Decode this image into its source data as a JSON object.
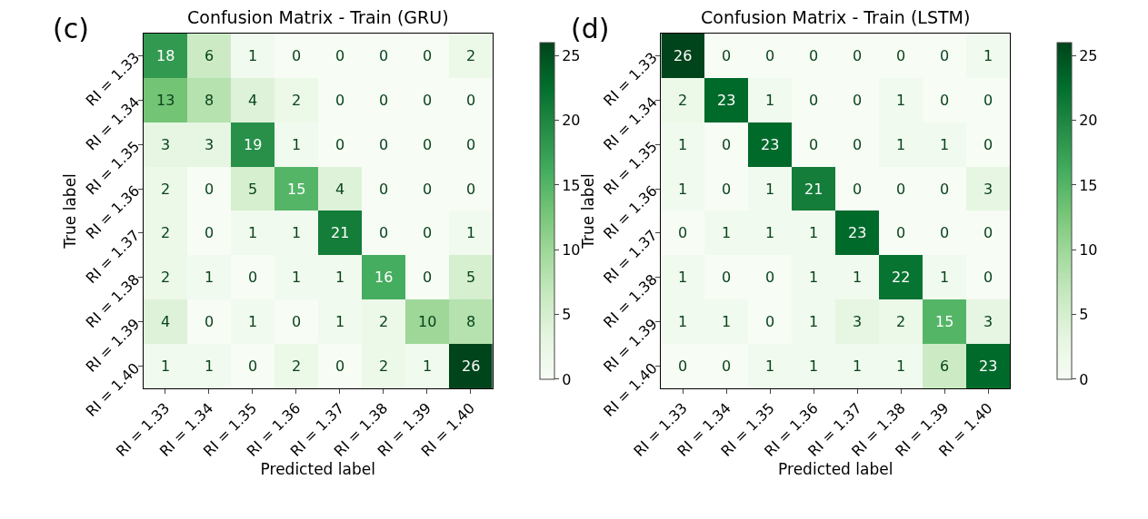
{
  "chart_data": [
    {
      "type": "heatmap",
      "title": "Confusion Matrix - Train (GRU)",
      "xlabel": "Predicted label",
      "ylabel": "True label",
      "annotations": [
        "(c)"
      ],
      "categories": [
        "RI = 1.33",
        "RI = 1.34",
        "RI = 1.35",
        "RI = 1.36",
        "RI = 1.37",
        "RI = 1.38",
        "RI = 1.39",
        "RI = 1.40"
      ],
      "y_categories": [
        "RI = 1.33",
        "RI = 1.34",
        "RI = 1.35",
        "RI = 1.36",
        "RI = 1.37",
        "RI = 1.38",
        "RI = 1.39",
        "RI = 1.40"
      ],
      "cells": [
        [
          18,
          6,
          1,
          0,
          0,
          0,
          0,
          2
        ],
        [
          13,
          8,
          4,
          2,
          0,
          0,
          0,
          0
        ],
        [
          3,
          3,
          19,
          1,
          0,
          0,
          0,
          0
        ],
        [
          2,
          0,
          5,
          15,
          4,
          0,
          0,
          0
        ],
        [
          2,
          0,
          1,
          1,
          21,
          0,
          0,
          1
        ],
        [
          2,
          1,
          0,
          1,
          1,
          16,
          0,
          5
        ],
        [
          4,
          0,
          1,
          0,
          1,
          2,
          10,
          8
        ],
        [
          1,
          1,
          0,
          2,
          0,
          2,
          1,
          26
        ]
      ],
      "clim": [
        0,
        26
      ],
      "cticks": [
        0,
        5,
        10,
        15,
        20,
        25
      ],
      "data_labels": true
    },
    {
      "type": "heatmap",
      "title": "Confusion Matrix - Train (LSTM)",
      "xlabel": "Predicted label",
      "ylabel": "True label",
      "annotations": [
        "(d)"
      ],
      "categories": [
        "RI = 1.33",
        "RI = 1.34",
        "RI = 1.35",
        "RI = 1.36",
        "RI = 1.37",
        "RI = 1.38",
        "RI = 1.39",
        "RI = 1.40"
      ],
      "y_categories": [
        "RI = 1.33",
        "RI = 1.34",
        "RI = 1.35",
        "RI = 1.36",
        "RI = 1.37",
        "RI = 1.38",
        "RI = 1.39",
        "RI = 1.40"
      ],
      "cells": [
        [
          26,
          0,
          0,
          0,
          0,
          0,
          0,
          1
        ],
        [
          2,
          23,
          1,
          0,
          0,
          1,
          0,
          0
        ],
        [
          1,
          0,
          23,
          0,
          0,
          1,
          1,
          0
        ],
        [
          1,
          0,
          1,
          21,
          0,
          0,
          0,
          3
        ],
        [
          0,
          1,
          1,
          1,
          23,
          0,
          0,
          0
        ],
        [
          1,
          0,
          0,
          1,
          1,
          22,
          1,
          0
        ],
        [
          1,
          1,
          0,
          1,
          3,
          2,
          15,
          3
        ],
        [
          0,
          0,
          1,
          1,
          1,
          1,
          6,
          23
        ]
      ],
      "clim": [
        0,
        26
      ],
      "cticks": [
        0,
        5,
        10,
        15,
        20,
        25
      ],
      "data_labels": true
    }
  ]
}
